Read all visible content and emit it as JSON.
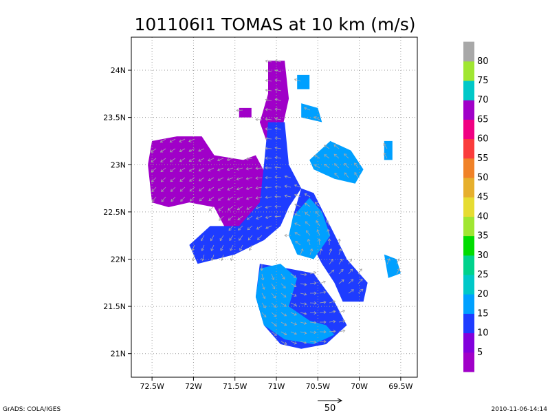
{
  "chart_data": {
    "type": "heatmap",
    "title": "101106I1 TOMAS at 10 km (m/s)",
    "variable_units": "m/s",
    "xlim": [
      -72.75,
      -69.3
    ],
    "ylim": [
      20.75,
      24.35
    ],
    "x_ticks": [
      {
        "value": -72.5,
        "label": "72.5W"
      },
      {
        "value": -72.0,
        "label": "72W"
      },
      {
        "value": -71.5,
        "label": "71.5W"
      },
      {
        "value": -71.0,
        "label": "71W"
      },
      {
        "value": -70.5,
        "label": "70.5W"
      },
      {
        "value": -70.0,
        "label": "70W"
      },
      {
        "value": -69.5,
        "label": "69.5W"
      }
    ],
    "y_ticks": [
      {
        "value": 21.0,
        "label": "21N"
      },
      {
        "value": 21.5,
        "label": "21.5N"
      },
      {
        "value": 22.0,
        "label": "22N"
      },
      {
        "value": 22.5,
        "label": "22.5N"
      },
      {
        "value": 23.0,
        "label": "23N"
      },
      {
        "value": 23.5,
        "label": "23.5N"
      },
      {
        "value": 24.0,
        "label": "24N"
      }
    ],
    "grid": true,
    "colorbar": {
      "position": "right",
      "levels": [
        {
          "label": "",
          "color": "#a000c8"
        },
        {
          "label": "5",
          "color": "#8200dc"
        },
        {
          "label": "10",
          "color": "#1e3cff"
        },
        {
          "label": "15",
          "color": "#00a0ff"
        },
        {
          "label": "20",
          "color": "#00c8c8"
        },
        {
          "label": "25",
          "color": "#00d28c"
        },
        {
          "label": "30",
          "color": "#00dc00"
        },
        {
          "label": "35",
          "color": "#a0e632"
        },
        {
          "label": "40",
          "color": "#e6dc32"
        },
        {
          "label": "45",
          "color": "#e6af2d"
        },
        {
          "label": "50",
          "color": "#f08228"
        },
        {
          "label": "55",
          "color": "#fa3c3c"
        },
        {
          "label": "60",
          "color": "#f00082"
        },
        {
          "label": "65",
          "color": "#a000c8"
        },
        {
          "label": "70",
          "color": "#00c8c8"
        },
        {
          "label": "75",
          "color": "#a0e632"
        },
        {
          "label": "80",
          "color": "#a8a8a8"
        }
      ]
    },
    "wind_regions": [
      {
        "name": "west arm",
        "speed_class": "65-70",
        "color": "#a000c8",
        "polygon": [
          [
            -72.55,
            23.0
          ],
          [
            -72.5,
            23.25
          ],
          [
            -72.2,
            23.3
          ],
          [
            -71.9,
            23.3
          ],
          [
            -71.75,
            23.1
          ],
          [
            -71.4,
            23.05
          ],
          [
            -71.25,
            23.1
          ],
          [
            -71.1,
            22.85
          ],
          [
            -70.85,
            22.7
          ],
          [
            -70.9,
            22.45
          ],
          [
            -71.15,
            22.35
          ],
          [
            -71.35,
            22.25
          ],
          [
            -71.6,
            22.3
          ],
          [
            -71.75,
            22.55
          ],
          [
            -72.05,
            22.6
          ],
          [
            -72.3,
            22.55
          ],
          [
            -72.5,
            22.6
          ]
        ]
      },
      {
        "name": "north band",
        "speed_class": "65-70",
        "color": "#a000c8",
        "polygon": [
          [
            -71.1,
            24.1
          ],
          [
            -70.9,
            24.1
          ],
          [
            -70.85,
            23.7
          ],
          [
            -70.95,
            23.3
          ],
          [
            -71.1,
            23.2
          ],
          [
            -71.2,
            23.45
          ],
          [
            -71.1,
            23.75
          ]
        ]
      },
      {
        "name": "north patch",
        "speed_class": "65-70",
        "color": "#a000c8",
        "polygon": [
          [
            -71.45,
            23.6
          ],
          [
            -71.3,
            23.6
          ],
          [
            -71.3,
            23.5
          ],
          [
            -71.45,
            23.5
          ]
        ]
      },
      {
        "name": "central band",
        "speed_class": "10-15",
        "color": "#1e3cff",
        "polygon": [
          [
            -71.1,
            23.45
          ],
          [
            -70.9,
            23.45
          ],
          [
            -70.85,
            23.0
          ],
          [
            -70.7,
            22.75
          ],
          [
            -70.85,
            22.55
          ],
          [
            -70.95,
            22.35
          ],
          [
            -71.15,
            22.2
          ],
          [
            -71.5,
            22.05
          ],
          [
            -71.95,
            21.95
          ],
          [
            -72.05,
            22.15
          ],
          [
            -71.8,
            22.35
          ],
          [
            -71.45,
            22.35
          ],
          [
            -71.2,
            22.6
          ],
          [
            -71.15,
            23.0
          ]
        ]
      },
      {
        "name": "east rainband",
        "speed_class": "10-15",
        "color": "#1e3cff",
        "polygon": [
          [
            -70.7,
            22.75
          ],
          [
            -70.55,
            22.7
          ],
          [
            -70.35,
            22.35
          ],
          [
            -70.15,
            22.0
          ],
          [
            -69.9,
            21.75
          ],
          [
            -69.95,
            21.55
          ],
          [
            -70.2,
            21.55
          ],
          [
            -70.3,
            21.75
          ],
          [
            -70.45,
            21.95
          ],
          [
            -70.6,
            22.2
          ],
          [
            -70.8,
            22.45
          ]
        ]
      },
      {
        "name": "south band",
        "speed_class": "10-15",
        "color": "#1e3cff",
        "polygon": [
          [
            -71.2,
            21.95
          ],
          [
            -70.85,
            21.9
          ],
          [
            -70.55,
            21.85
          ],
          [
            -70.3,
            21.55
          ],
          [
            -70.15,
            21.3
          ],
          [
            -70.4,
            21.1
          ],
          [
            -70.7,
            21.05
          ],
          [
            -70.95,
            21.1
          ],
          [
            -71.15,
            21.3
          ],
          [
            -71.25,
            21.6
          ]
        ]
      },
      {
        "name": "south cyan",
        "speed_class": "15-20",
        "color": "#00a0ff",
        "polygon": [
          [
            -71.2,
            21.9
          ],
          [
            -70.95,
            21.95
          ],
          [
            -70.75,
            21.8
          ],
          [
            -70.85,
            21.5
          ],
          [
            -70.6,
            21.35
          ],
          [
            -70.4,
            21.3
          ],
          [
            -70.3,
            21.2
          ],
          [
            -70.55,
            21.1
          ],
          [
            -70.9,
            21.15
          ],
          [
            -71.15,
            21.3
          ],
          [
            -71.25,
            21.6
          ]
        ]
      },
      {
        "name": "inner cyan",
        "speed_class": "15-20",
        "color": "#00a0ff",
        "polygon": [
          [
            -70.8,
            22.45
          ],
          [
            -70.6,
            22.65
          ],
          [
            -70.45,
            22.5
          ],
          [
            -70.35,
            22.25
          ],
          [
            -70.55,
            22.0
          ],
          [
            -70.75,
            22.05
          ],
          [
            -70.85,
            22.25
          ]
        ]
      },
      {
        "name": "northeast cyan",
        "speed_class": "15-20",
        "color": "#00a0ff",
        "polygon": [
          [
            -70.6,
            23.05
          ],
          [
            -70.35,
            23.25
          ],
          [
            -70.1,
            23.15
          ],
          [
            -69.95,
            22.95
          ],
          [
            -70.05,
            22.8
          ],
          [
            -70.3,
            22.85
          ],
          [
            -70.55,
            22.95
          ]
        ]
      },
      {
        "name": "north cyan",
        "speed_class": "15-20",
        "color": "#00a0ff",
        "polygon": [
          [
            -70.7,
            23.65
          ],
          [
            -70.5,
            23.6
          ],
          [
            -70.45,
            23.45
          ],
          [
            -70.7,
            23.5
          ]
        ]
      },
      {
        "name": "top cyan",
        "speed_class": "15-20",
        "color": "#00a0ff",
        "polygon": [
          [
            -70.75,
            23.95
          ],
          [
            -70.6,
            23.95
          ],
          [
            -70.6,
            23.8
          ],
          [
            -70.75,
            23.8
          ]
        ]
      },
      {
        "name": "far east cyan",
        "speed_class": "15-20",
        "color": "#00a0ff",
        "polygon": [
          [
            -69.7,
            23.25
          ],
          [
            -69.6,
            23.25
          ],
          [
            -69.6,
            23.05
          ],
          [
            -69.7,
            23.05
          ]
        ]
      },
      {
        "name": "east cyan",
        "speed_class": "15-20",
        "color": "#00a0ff",
        "polygon": [
          [
            -69.7,
            22.05
          ],
          [
            -69.55,
            22.0
          ],
          [
            -69.5,
            21.85
          ],
          [
            -69.65,
            21.8
          ]
        ]
      }
    ],
    "vector_reference": {
      "label": "50"
    }
  },
  "footer": {
    "left": "GrADS: COLA/IGES",
    "right": "2010-11-06-14:14"
  }
}
